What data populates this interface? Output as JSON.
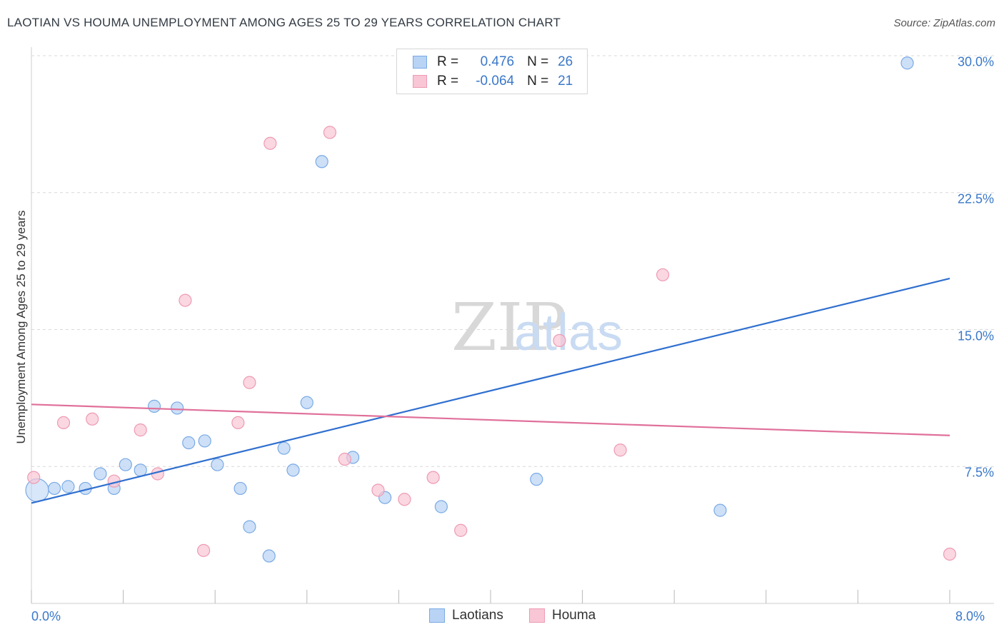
{
  "title": "LAOTIAN VS HOUMA UNEMPLOYMENT AMONG AGES 25 TO 29 YEARS CORRELATION CHART",
  "source": "Source: ZipAtlas.com",
  "watermark": {
    "zip": "ZIP",
    "atlas": "atlas"
  },
  "colors": {
    "laotians_fill": "#b8d3f4",
    "laotians_stroke": "#7aaae6",
    "laotians_line": "#2f6fcf",
    "houma_fill": "#f8c6d4",
    "houma_stroke": "#ee9ab3",
    "houma_line": "#e0709a",
    "tick_text": "#3a78c9",
    "grid": "#d9d9d9"
  },
  "legend": {
    "rows": [
      {
        "series": "Laotians",
        "r_label": "R =",
        "r_value": "0.476",
        "n_label": "N =",
        "n_value": "26"
      },
      {
        "series": "Houma",
        "r_label": "R =",
        "r_value": "-0.064",
        "n_label": "N =",
        "n_value": "21"
      }
    ]
  },
  "bottom_legend": [
    "Laotians",
    "Houma"
  ],
  "chart_data": {
    "type": "scatter",
    "title": "LAOTIAN VS HOUMA UNEMPLOYMENT AMONG AGES 25 TO 29 YEARS CORRELATION CHART",
    "xlabel": "",
    "ylabel": "Unemployment Among Ages 25 to 29 years",
    "xlim": [
      0,
      8
    ],
    "ylim": [
      0,
      30
    ],
    "x_tick_labels": [
      "0.0%",
      "8.0%"
    ],
    "y_ticks": [
      7.5,
      15,
      22.5,
      30
    ],
    "y_tick_labels": [
      "7.5%",
      "15.0%",
      "22.5%",
      "30.0%"
    ],
    "grid": true,
    "legend_position": "top-center",
    "series": [
      {
        "name": "Laotians",
        "r": 0.476,
        "n": 26,
        "points": [
          [
            0.05,
            6.2
          ],
          [
            0.2,
            6.3
          ],
          [
            0.32,
            6.4
          ],
          [
            0.47,
            6.3
          ],
          [
            0.6,
            7.1
          ],
          [
            0.72,
            6.3
          ],
          [
            0.82,
            7.6
          ],
          [
            0.95,
            7.3
          ],
          [
            1.07,
            10.8
          ],
          [
            1.27,
            10.7
          ],
          [
            1.37,
            8.8
          ],
          [
            1.51,
            8.9
          ],
          [
            1.62,
            7.6
          ],
          [
            1.82,
            6.3
          ],
          [
            1.9,
            4.2
          ],
          [
            2.07,
            2.6
          ],
          [
            2.2,
            8.5
          ],
          [
            2.28,
            7.3
          ],
          [
            2.4,
            11.0
          ],
          [
            2.53,
            24.2
          ],
          [
            2.8,
            8.0
          ],
          [
            3.08,
            5.8
          ],
          [
            3.57,
            5.3
          ],
          [
            4.4,
            6.8
          ],
          [
            6.0,
            5.1
          ],
          [
            7.63,
            29.6
          ]
        ],
        "trend": {
          "x": [
            0,
            8
          ],
          "y": [
            5.5,
            17.8
          ]
        }
      },
      {
        "name": "Houma",
        "r": -0.064,
        "n": 21,
        "points": [
          [
            0.02,
            6.9
          ],
          [
            0.28,
            9.9
          ],
          [
            0.53,
            10.1
          ],
          [
            0.72,
            6.7
          ],
          [
            0.95,
            9.5
          ],
          [
            1.1,
            7.1
          ],
          [
            1.34,
            16.6
          ],
          [
            1.5,
            2.9
          ],
          [
            1.8,
            9.9
          ],
          [
            1.9,
            12.1
          ],
          [
            2.08,
            25.2
          ],
          [
            2.73,
            7.9
          ],
          [
            2.6,
            25.8
          ],
          [
            3.02,
            6.2
          ],
          [
            3.25,
            5.7
          ],
          [
            3.5,
            6.9
          ],
          [
            3.74,
            4.0
          ],
          [
            4.6,
            14.4
          ],
          [
            5.13,
            8.4
          ],
          [
            5.5,
            18.0
          ],
          [
            8.0,
            2.7
          ]
        ],
        "trend": {
          "x": [
            0,
            8
          ],
          "y": [
            10.9,
            9.2
          ]
        }
      }
    ]
  }
}
